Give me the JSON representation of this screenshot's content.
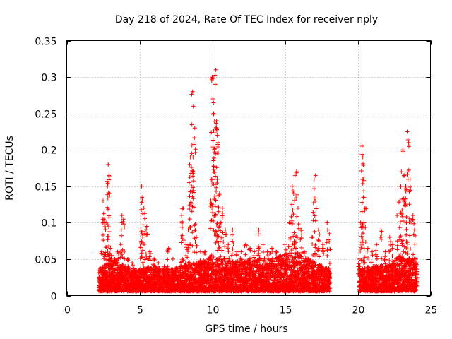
{
  "chart_data": {
    "type": "scatter",
    "title": "Day 218 of 2024, Rate Of TEC Index for receiver nply",
    "xlabel": "GPS time / hours",
    "ylabel": "ROTI / TECUs",
    "xlim": [
      0,
      25
    ],
    "ylim": [
      0,
      0.35
    ],
    "xticks": [
      0,
      5,
      10,
      15,
      20,
      25
    ],
    "yticks": [
      0,
      0.05,
      0.1,
      0.15,
      0.2,
      0.25,
      0.3,
      0.35
    ],
    "xtick_labels": [
      "0",
      "5",
      "10",
      "15",
      "20",
      "25"
    ],
    "ytick_labels": [
      "0",
      "0.05",
      "0.1",
      "0.15",
      "0.2",
      "0.25",
      "0.3",
      "0.35"
    ],
    "grid": true,
    "marker": "+",
    "color": "#ff0000",
    "series": [
      {
        "name": "ROTI",
        "x": [
          2.4,
          2.5,
          2.6,
          2.7,
          2.8,
          2.85,
          2.9,
          2.95,
          3.0,
          3.1,
          3.3,
          3.5,
          3.7,
          3.8,
          3.9,
          4.2,
          4.5,
          4.8,
          5.1,
          5.15,
          5.2,
          5.3,
          5.5,
          5.7,
          6.0,
          6.3,
          6.7,
          7.0,
          7.3,
          7.6,
          7.9,
          8.0,
          8.2,
          8.35,
          8.45,
          8.5,
          8.6,
          8.65,
          8.7,
          8.8,
          8.9,
          9.2,
          9.5,
          9.7,
          9.9,
          10.0,
          10.05,
          10.1,
          10.15,
          10.2,
          10.25,
          10.3,
          10.35,
          10.4,
          10.5,
          10.6,
          10.7,
          10.9,
          11.1,
          11.4,
          11.7,
          12.0,
          12.3,
          12.6,
          12.9,
          13.2,
          13.5,
          13.8,
          14.1,
          14.4,
          14.7,
          15.0,
          15.3,
          15.5,
          15.6,
          15.7,
          15.8,
          15.9,
          16.1,
          16.3,
          16.6,
          16.9,
          17.0,
          17.1,
          17.3,
          17.6,
          17.9,
          18.05,
          20.1,
          20.2,
          20.3,
          20.35,
          20.4,
          20.5,
          20.7,
          21.0,
          21.3,
          21.6,
          21.9,
          22.2,
          22.4,
          22.7,
          22.9,
          23.0,
          23.1,
          23.2,
          23.3,
          23.35,
          23.4,
          23.5,
          23.6,
          23.8,
          23.9,
          24.0
        ],
        "y": [
          0.06,
          0.13,
          0.1,
          0.1,
          0.15,
          0.18,
          0.165,
          0.14,
          0.065,
          0.055,
          0.05,
          0.06,
          0.07,
          0.11,
          0.105,
          0.05,
          0.045,
          0.035,
          0.09,
          0.15,
          0.13,
          0.12,
          0.095,
          0.06,
          0.05,
          0.045,
          0.04,
          0.065,
          0.05,
          0.035,
          0.11,
          0.12,
          0.07,
          0.09,
          0.18,
          0.19,
          0.195,
          0.28,
          0.26,
          0.23,
          0.08,
          0.06,
          0.06,
          0.05,
          0.13,
          0.3,
          0.27,
          0.25,
          0.2,
          0.29,
          0.31,
          0.24,
          0.22,
          0.21,
          0.14,
          0.1,
          0.12,
          0.09,
          0.07,
          0.09,
          0.06,
          0.06,
          0.07,
          0.065,
          0.06,
          0.09,
          0.07,
          0.06,
          0.065,
          0.06,
          0.055,
          0.07,
          0.1,
          0.15,
          0.14,
          0.165,
          0.17,
          0.12,
          0.09,
          0.06,
          0.05,
          0.08,
          0.16,
          0.165,
          0.09,
          0.07,
          0.1,
          0.085,
          0.05,
          0.1,
          0.205,
          0.19,
          0.16,
          0.12,
          0.065,
          0.06,
          0.07,
          0.09,
          0.06,
          0.08,
          0.07,
          0.11,
          0.13,
          0.17,
          0.2,
          0.165,
          0.15,
          0.1,
          0.225,
          0.21,
          0.16,
          0.11,
          0.09,
          0.05
        ]
      }
    ],
    "background_band": {
      "description": "dense low-level ROTI values, upper envelope per hour",
      "hours": [
        2.2,
        3,
        4,
        5,
        6,
        7,
        8,
        9,
        10,
        11,
        12,
        13,
        14,
        15,
        16,
        17,
        18.1,
        20.1,
        21,
        22,
        23,
        24.1
      ],
      "upper": [
        0.03,
        0.045,
        0.035,
        0.03,
        0.035,
        0.03,
        0.035,
        0.04,
        0.05,
        0.045,
        0.04,
        0.045,
        0.045,
        0.05,
        0.05,
        0.04,
        0.03,
        0.03,
        0.035,
        0.035,
        0.05,
        0.04
      ],
      "gap": [
        18.1,
        20.1
      ]
    }
  }
}
